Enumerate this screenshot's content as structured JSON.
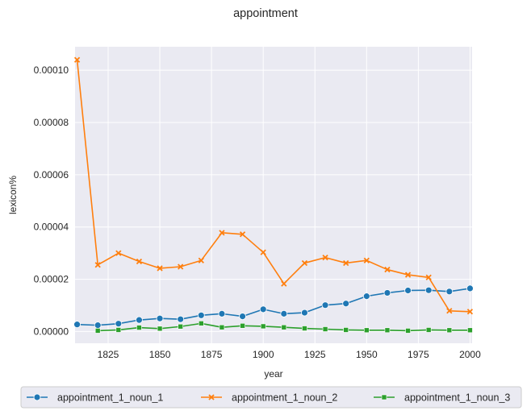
{
  "chart_data": {
    "type": "line",
    "title": "appointment",
    "xlabel": "year",
    "ylabel": "lexicon%",
    "xlim": [
      1809,
      2001
    ],
    "ylim": [
      -4.5e-06,
      0.000109
    ],
    "xticks": [
      1825,
      1850,
      1875,
      1900,
      1925,
      1950,
      1975,
      2000
    ],
    "xtick_labels": [
      "1825",
      "1850",
      "1875",
      "1900",
      "1925",
      "1950",
      "1975",
      "2000"
    ],
    "yticks": [
      0,
      2e-05,
      4e-05,
      6e-05,
      8e-05,
      0.0001
    ],
    "ytick_labels": [
      "0.00000",
      "0.00002",
      "0.00004",
      "0.00006",
      "0.00008",
      "0.00010"
    ],
    "grid": true,
    "legend_position": "bottom-outside",
    "colors": {
      "background": "#eaeaf2",
      "grid": "#ffffff"
    },
    "x": [
      1810,
      1820,
      1830,
      1840,
      1850,
      1860,
      1870,
      1880,
      1890,
      1900,
      1910,
      1920,
      1930,
      1940,
      1950,
      1960,
      1970,
      1980,
      1990,
      2000
    ],
    "series": [
      {
        "name": "appointment_1_noun_1",
        "color": "#1f77b4",
        "marker": "circle",
        "values": [
          2.7e-06,
          2.4e-06,
          3e-06,
          4.4e-06,
          5e-06,
          4.7e-06,
          6.2e-06,
          6.8e-06,
          5.8e-06,
          8.5e-06,
          6.8e-06,
          7.2e-06,
          1.01e-05,
          1.07e-05,
          1.35e-05,
          1.48e-05,
          1.57e-05,
          1.58e-05,
          1.53e-05,
          1.65e-05
        ]
      },
      {
        "name": "appointment_1_noun_2",
        "color": "#ff7f0e",
        "marker": "x",
        "values": [
          0.000104,
          2.55e-05,
          3e-05,
          2.68e-05,
          2.42e-05,
          2.48e-05,
          2.72e-05,
          3.78e-05,
          3.72e-05,
          3.03e-05,
          1.83e-05,
          2.62e-05,
          2.83e-05,
          2.62e-05,
          2.72e-05,
          2.37e-05,
          2.17e-05,
          2.07e-05,
          7.9e-06,
          7.6e-06
        ]
      },
      {
        "name": "appointment_1_noun_3",
        "color": "#2ca02c",
        "marker": "square",
        "values": [
          null,
          3e-07,
          6e-07,
          1.5e-06,
          1.1e-06,
          1.9e-06,
          3.1e-06,
          1.6e-06,
          2.2e-06,
          2e-06,
          1.6e-06,
          1.2e-06,
          9e-07,
          6e-07,
          5e-07,
          5e-07,
          3e-07,
          6e-07,
          5e-07,
          5e-07
        ]
      }
    ]
  }
}
